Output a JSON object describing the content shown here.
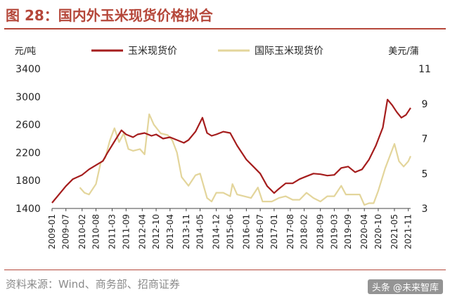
{
  "header": {
    "title": "图 28：国内外玉米现货价格拟合"
  },
  "footer": {
    "source": "资料来源：Wind、商务部、招商证券",
    "watermark": "头条 @未来智库"
  },
  "chart_data": {
    "type": "line",
    "title": "国内外玉米现货价格拟合",
    "left_unit": "元/吨",
    "right_unit": "美元/蒲",
    "ylim_left": [
      1400,
      3400
    ],
    "yticks_left": [
      1400,
      1800,
      2200,
      2600,
      3000,
      3400
    ],
    "ylim_right": [
      3,
      11
    ],
    "yticks_right": [
      3,
      5,
      7,
      9,
      11
    ],
    "xlim": [
      "2009-01",
      "2021-12"
    ],
    "xticks": [
      "2009-01",
      "2009-07",
      "2010-02",
      "2010-08",
      "2011-03",
      "2011-09",
      "2012-04",
      "2012-10",
      "2013-04",
      "2013-11",
      "2014-05",
      "2014-12",
      "2015-06",
      "2016-01",
      "2016-07",
      "2017-01",
      "2017-08",
      "2018-02",
      "2018-09",
      "2019-03",
      "2019-09",
      "2020-04",
      "2020-10",
      "2021-05",
      "2021-11"
    ],
    "legend_position": "top-center",
    "grid": false,
    "series": [
      {
        "name": "玉米现货价",
        "axis": "left",
        "color": "#a51d1d",
        "points": [
          [
            "2009-01",
            1480
          ],
          [
            "2009-04",
            1600
          ],
          [
            "2009-07",
            1720
          ],
          [
            "2009-10",
            1820
          ],
          [
            "2010-02",
            1880
          ],
          [
            "2010-05",
            1960
          ],
          [
            "2010-08",
            2020
          ],
          [
            "2010-11",
            2080
          ],
          [
            "2011-01",
            2200
          ],
          [
            "2011-04",
            2360
          ],
          [
            "2011-07",
            2520
          ],
          [
            "2011-09",
            2460
          ],
          [
            "2011-12",
            2420
          ],
          [
            "2012-02",
            2460
          ],
          [
            "2012-05",
            2480
          ],
          [
            "2012-08",
            2440
          ],
          [
            "2012-10",
            2460
          ],
          [
            "2013-01",
            2400
          ],
          [
            "2013-04",
            2420
          ],
          [
            "2013-07",
            2380
          ],
          [
            "2013-10",
            2340
          ],
          [
            "2013-12",
            2380
          ],
          [
            "2014-03",
            2500
          ],
          [
            "2014-06",
            2700
          ],
          [
            "2014-08",
            2480
          ],
          [
            "2014-10",
            2440
          ],
          [
            "2014-12",
            2460
          ],
          [
            "2015-03",
            2500
          ],
          [
            "2015-06",
            2480
          ],
          [
            "2015-09",
            2300
          ],
          [
            "2015-11",
            2200
          ],
          [
            "2016-01",
            2100
          ],
          [
            "2016-04",
            2000
          ],
          [
            "2016-07",
            1900
          ],
          [
            "2016-10",
            1720
          ],
          [
            "2017-01",
            1620
          ],
          [
            "2017-03",
            1680
          ],
          [
            "2017-06",
            1760
          ],
          [
            "2017-09",
            1760
          ],
          [
            "2017-12",
            1820
          ],
          [
            "2018-03",
            1860
          ],
          [
            "2018-06",
            1900
          ],
          [
            "2018-09",
            1890
          ],
          [
            "2018-12",
            1870
          ],
          [
            "2019-03",
            1880
          ],
          [
            "2019-06",
            1980
          ],
          [
            "2019-09",
            2000
          ],
          [
            "2019-12",
            1920
          ],
          [
            "2020-03",
            1960
          ],
          [
            "2020-06",
            2100
          ],
          [
            "2020-09",
            2300
          ],
          [
            "2020-12",
            2560
          ],
          [
            "2021-02",
            2960
          ],
          [
            "2021-04",
            2880
          ],
          [
            "2021-06",
            2780
          ],
          [
            "2021-08",
            2700
          ],
          [
            "2021-10",
            2740
          ],
          [
            "2021-12",
            2840
          ]
        ]
      },
      {
        "name": "国际玉米现货价",
        "axis": "right",
        "color": "#e3d59b",
        "points": [
          [
            "2010-01",
            4.2
          ],
          [
            "2010-03",
            3.9
          ],
          [
            "2010-05",
            3.8
          ],
          [
            "2010-08",
            4.4
          ],
          [
            "2010-10",
            5.6
          ],
          [
            "2010-12",
            5.9
          ],
          [
            "2011-02",
            6.9
          ],
          [
            "2011-04",
            7.6
          ],
          [
            "2011-06",
            6.8
          ],
          [
            "2011-08",
            7.3
          ],
          [
            "2011-10",
            6.4
          ],
          [
            "2011-12",
            6.3
          ],
          [
            "2012-03",
            6.4
          ],
          [
            "2012-05",
            6.1
          ],
          [
            "2012-07",
            8.4
          ],
          [
            "2012-09",
            7.8
          ],
          [
            "2012-12",
            7.3
          ],
          [
            "2013-03",
            7.2
          ],
          [
            "2013-05",
            6.9
          ],
          [
            "2013-07",
            6.2
          ],
          [
            "2013-09",
            4.8
          ],
          [
            "2013-12",
            4.3
          ],
          [
            "2014-03",
            4.9
          ],
          [
            "2014-05",
            5.0
          ],
          [
            "2014-08",
            3.6
          ],
          [
            "2014-10",
            3.4
          ],
          [
            "2014-12",
            3.9
          ],
          [
            "2015-03",
            3.9
          ],
          [
            "2015-06",
            3.7
          ],
          [
            "2015-07",
            4.4
          ],
          [
            "2015-09",
            3.8
          ],
          [
            "2015-12",
            3.7
          ],
          [
            "2016-03",
            3.6
          ],
          [
            "2016-06",
            4.2
          ],
          [
            "2016-08",
            3.4
          ],
          [
            "2016-12",
            3.4
          ],
          [
            "2017-03",
            3.6
          ],
          [
            "2017-06",
            3.7
          ],
          [
            "2017-09",
            3.5
          ],
          [
            "2017-12",
            3.5
          ],
          [
            "2018-03",
            3.9
          ],
          [
            "2018-06",
            3.6
          ],
          [
            "2018-09",
            3.4
          ],
          [
            "2018-12",
            3.7
          ],
          [
            "2019-03",
            3.7
          ],
          [
            "2019-06",
            4.3
          ],
          [
            "2019-08",
            3.8
          ],
          [
            "2019-11",
            3.8
          ],
          [
            "2020-02",
            3.8
          ],
          [
            "2020-04",
            3.2
          ],
          [
            "2020-06",
            3.3
          ],
          [
            "2020-08",
            3.3
          ],
          [
            "2020-10",
            4.0
          ],
          [
            "2021-01",
            5.3
          ],
          [
            "2021-05",
            6.7
          ],
          [
            "2021-07",
            5.7
          ],
          [
            "2021-09",
            5.4
          ],
          [
            "2021-11",
            5.7
          ],
          [
            "2021-12",
            6.0
          ]
        ]
      }
    ]
  }
}
